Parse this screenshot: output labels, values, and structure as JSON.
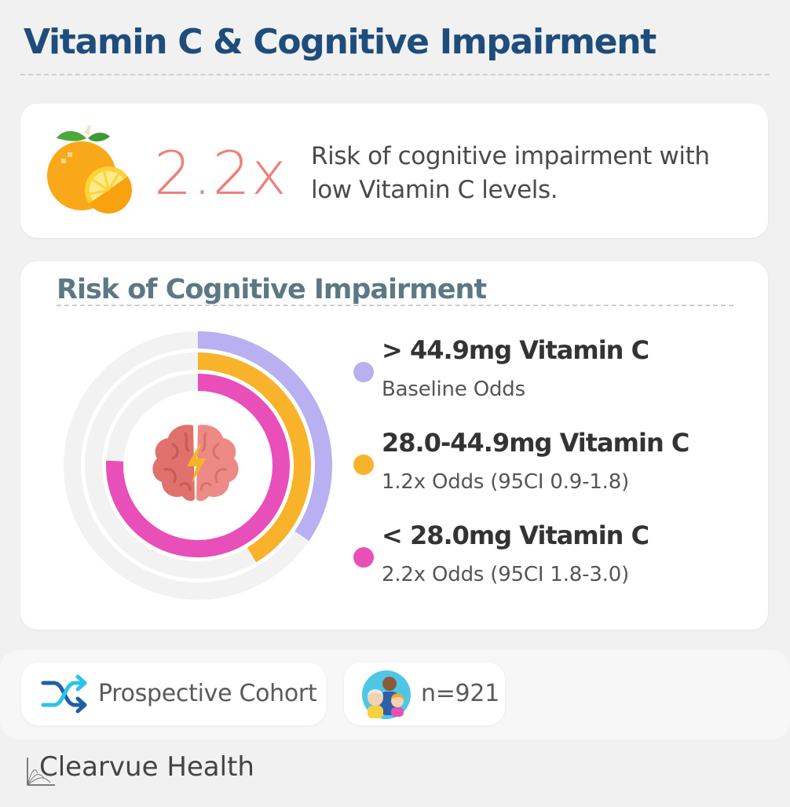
{
  "title": "Vitamin C & Cognitive Impairment",
  "stat": {
    "value": "2.2x",
    "text": "Risk of cognitive impairment with low Vitamin C levels.",
    "icon": "orange-fruit-icon"
  },
  "chart_data": {
    "type": "radial-bar",
    "title": "Risk of Cognitive Impairment",
    "categories": [
      "> 44.9mg Vitamin C",
      "28.0-44.9mg Vitamin C",
      "< 28.0mg Vitamin C"
    ],
    "values": [
      1.0,
      1.2,
      2.2
    ],
    "max_value": 2.9,
    "series": [
      {
        "label": "> 44.9mg Vitamin C",
        "sub": "Baseline Odds",
        "value": 1.0,
        "color": "#b8b0f0"
      },
      {
        "label": "28.0-44.9mg Vitamin C",
        "sub": "1.2x Odds (95CI 0.9-1.8)",
        "value": 1.2,
        "color": "#f9b32a"
      },
      {
        "label": "< 28.0mg Vitamin C",
        "sub": "2.2x Odds (95CI 1.8-3.0)",
        "value": 2.2,
        "color": "#e84fb8"
      }
    ],
    "track_color": "#f2f2f2",
    "center_icon": "brain-lightning-icon"
  },
  "footer": {
    "design": {
      "label": "Prospective Cohort",
      "icon": "shuffle-arrows-icon"
    },
    "sample": {
      "label": "n=921",
      "icon": "people-group-icon"
    }
  },
  "brand": {
    "name": "Clearvue Health",
    "icon": "clearvue-logo-icon"
  }
}
